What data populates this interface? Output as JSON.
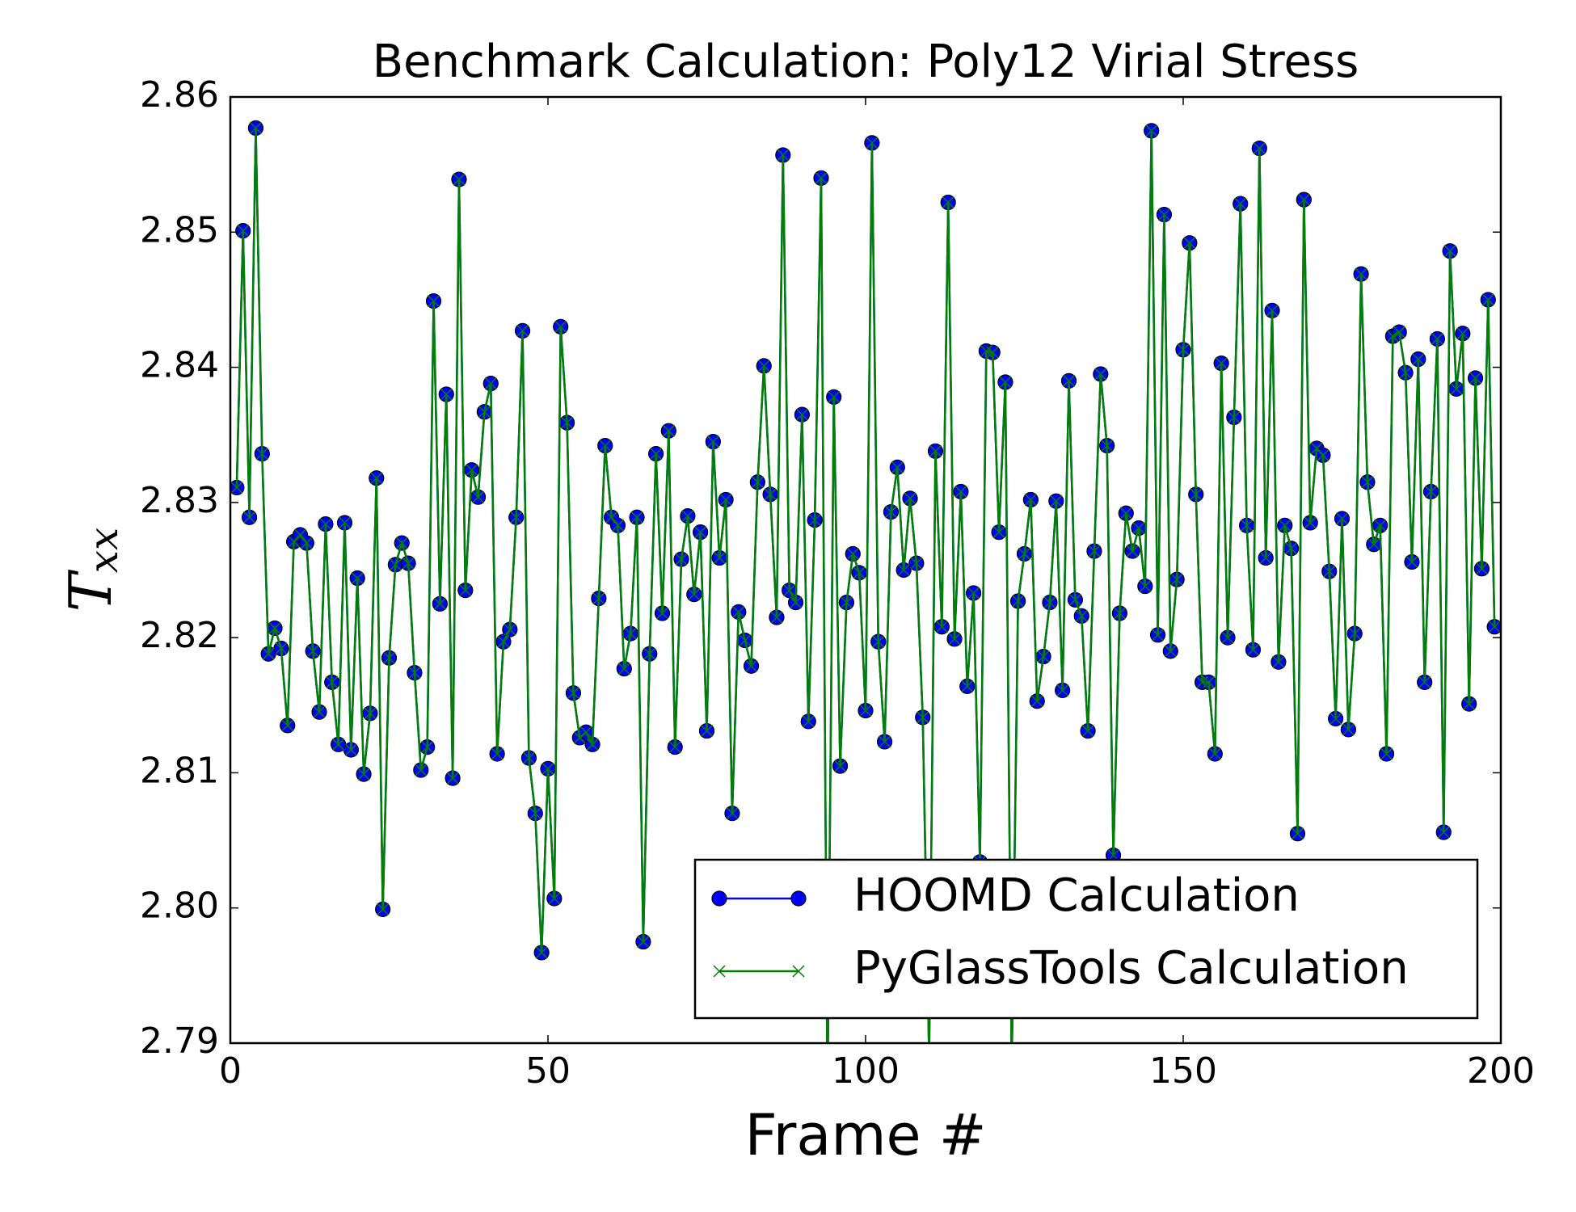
{
  "chart_data": {
    "type": "line",
    "title": "Benchmark Calculation: Poly12 Virial Stress",
    "xlabel": "Frame #",
    "ylabel": [
      "T",
      "xx"
    ],
    "xlim": [
      0,
      200
    ],
    "xticks": [
      0,
      50,
      100,
      150,
      200
    ],
    "ylim": [
      2.79,
      2.86
    ],
    "yticks": [
      2.79,
      {
        "value": 2.8,
        "label": "2.80"
      },
      2.81,
      2.82,
      2.83,
      2.84,
      2.85,
      2.86
    ],
    "legend": "lower right",
    "x": [
      1,
      2,
      3,
      4,
      5,
      6,
      7,
      8,
      9,
      10,
      11,
      12,
      13,
      14,
      15,
      16,
      17,
      18,
      19,
      20,
      21,
      22,
      23,
      24,
      25,
      26,
      27,
      28,
      29,
      30,
      31,
      32,
      33,
      34,
      35,
      36,
      37,
      38,
      39,
      40,
      41,
      42,
      43,
      44,
      45,
      46,
      47,
      48,
      49,
      50,
      51,
      52,
      53,
      54,
      55,
      56,
      57,
      58,
      59,
      60,
      61,
      62,
      63,
      64,
      65,
      66,
      67,
      68,
      69,
      70,
      71,
      72,
      73,
      74,
      75,
      76,
      77,
      78,
      79,
      80,
      81,
      82,
      83,
      84,
      85,
      86,
      87,
      88,
      89,
      90,
      91,
      92,
      93,
      94,
      95,
      96,
      97,
      98,
      99,
      100,
      101,
      102,
      103,
      104,
      105,
      106,
      107,
      108,
      109,
      110,
      111,
      112,
      113,
      114,
      115,
      116,
      117,
      118,
      119,
      120,
      121,
      122,
      123,
      124,
      125,
      126,
      127,
      128,
      129,
      130,
      131,
      132,
      133,
      134,
      135,
      136,
      137,
      138,
      139,
      140,
      141,
      142,
      143,
      144,
      145,
      146,
      147,
      148,
      149,
      150,
      151,
      152,
      153,
      154,
      155,
      156,
      157,
      158,
      159,
      160,
      161,
      162,
      163,
      164,
      165,
      166,
      167,
      168,
      169,
      170,
      171,
      172,
      173,
      174,
      175,
      176,
      177,
      178,
      179,
      180,
      181,
      182,
      183,
      184,
      185,
      186,
      187,
      188,
      189,
      190,
      191,
      192,
      193,
      194,
      195,
      196,
      197,
      198,
      199
    ],
    "series": [
      {
        "name": "HOOMD Calculation",
        "color": "#0000ff",
        "marker": "o",
        "values": [
          2.8311,
          2.8501,
          2.8289,
          2.8577,
          2.8336,
          2.8188,
          2.8207,
          2.8192,
          2.8135,
          2.8271,
          2.8276,
          2.827,
          2.819,
          2.8145,
          2.8284,
          2.8167,
          2.8121,
          2.8285,
          2.8117,
          2.8244,
          2.8099,
          2.8144,
          2.8318,
          2.7999,
          2.8185,
          2.8254,
          2.827,
          2.8255,
          2.8174,
          2.8102,
          2.8119,
          2.8449,
          2.8225,
          2.838,
          2.8096,
          2.8539,
          2.8235,
          2.8324,
          2.8304,
          2.8367,
          2.8388,
          2.8114,
          2.8197,
          2.8206,
          2.8289,
          2.8427,
          2.8111,
          2.807,
          2.7967,
          2.8103,
          2.8007,
          2.843,
          2.8359,
          2.8159,
          2.8126,
          2.813,
          2.8121,
          2.8229,
          2.8342,
          2.8289,
          2.8283,
          2.8177,
          2.8203,
          2.8289,
          2.7975,
          2.8188,
          2.8336,
          2.8218,
          2.8353,
          2.8119,
          2.8258,
          2.829,
          2.8232,
          2.8278,
          2.8131,
          2.8345,
          2.8259,
          2.8302,
          2.807,
          2.8219,
          2.8198,
          2.8179,
          2.8315,
          2.8401,
          2.8306,
          2.8215,
          2.8557,
          2.8235,
          2.8226,
          2.8365,
          2.8138,
          2.8287,
          2.854,
          2.786,
          2.8378,
          2.8105,
          2.8226,
          2.8262,
          2.8248,
          2.8146,
          2.8566,
          2.8197,
          2.8123,
          2.8293,
          2.8326,
          2.825,
          2.8303,
          2.8255,
          2.8141,
          2.789,
          2.8338,
          2.8208,
          2.8522,
          2.8199,
          2.8308,
          2.8164,
          2.8233,
          2.8034,
          2.8412,
          2.8411,
          2.8278,
          2.8389,
          2.788,
          2.8227,
          2.8262,
          2.8302,
          2.8153,
          2.8186,
          2.8226,
          2.8301,
          2.8161,
          2.839,
          2.8228,
          2.8216,
          2.8131,
          2.8264,
          2.8395,
          2.8342,
          2.8039,
          2.8218,
          2.8292,
          2.8264,
          2.8281,
          2.8238,
          2.8575,
          2.8202,
          2.8513,
          2.819,
          2.8243,
          2.8413,
          2.8492,
          2.8306,
          2.8167,
          2.8167,
          2.8114,
          2.8403,
          2.82,
          2.8363,
          2.8521,
          2.8283,
          2.8191,
          2.8562,
          2.8259,
          2.8442,
          2.8182,
          2.8283,
          2.8266,
          2.8055,
          2.8524,
          2.8285,
          2.834,
          2.8335,
          2.8249,
          2.814,
          2.8288,
          2.8132,
          2.8203,
          2.8469,
          2.8315,
          2.8269,
          2.8283,
          2.8114,
          2.8423,
          2.8426,
          2.8396,
          2.8256,
          2.8406,
          2.8167,
          2.8308,
          2.8421,
          2.8056,
          2.8486,
          2.8384,
          2.8425,
          2.8151,
          2.8392,
          2.8251,
          2.845,
          2.8208
        ]
      },
      {
        "name": "PyGlassTools Calculation",
        "color": "#008000",
        "marker": "x",
        "values": [
          2.8311,
          2.8501,
          2.8289,
          2.8577,
          2.8336,
          2.8188,
          2.8207,
          2.8192,
          2.8135,
          2.8271,
          2.8276,
          2.827,
          2.819,
          2.8145,
          2.8284,
          2.8167,
          2.8121,
          2.8285,
          2.8117,
          2.8244,
          2.8099,
          2.8144,
          2.8318,
          2.7999,
          2.8185,
          2.8254,
          2.827,
          2.8255,
          2.8174,
          2.8102,
          2.8119,
          2.8449,
          2.8225,
          2.838,
          2.8096,
          2.8539,
          2.8235,
          2.8324,
          2.8304,
          2.8367,
          2.8388,
          2.8114,
          2.8197,
          2.8206,
          2.8289,
          2.8427,
          2.8111,
          2.807,
          2.7967,
          2.8103,
          2.8007,
          2.843,
          2.8359,
          2.8159,
          2.8126,
          2.813,
          2.8121,
          2.8229,
          2.8342,
          2.8289,
          2.8283,
          2.8177,
          2.8203,
          2.8289,
          2.7975,
          2.8188,
          2.8336,
          2.8218,
          2.8353,
          2.8119,
          2.8258,
          2.829,
          2.8232,
          2.8278,
          2.8131,
          2.8345,
          2.8259,
          2.8302,
          2.807,
          2.8219,
          2.8198,
          2.8179,
          2.8315,
          2.8401,
          2.8306,
          2.8215,
          2.8557,
          2.8235,
          2.8226,
          2.8365,
          2.8138,
          2.8287,
          2.854,
          2.786,
          2.8378,
          2.8105,
          2.8226,
          2.8262,
          2.8248,
          2.8146,
          2.8566,
          2.8197,
          2.8123,
          2.8293,
          2.8326,
          2.825,
          2.8303,
          2.8255,
          2.8141,
          2.789,
          2.8338,
          2.8208,
          2.8522,
          2.8199,
          2.8308,
          2.8164,
          2.8233,
          2.8034,
          2.8412,
          2.8411,
          2.8278,
          2.8389,
          2.788,
          2.8227,
          2.8262,
          2.8302,
          2.8153,
          2.8186,
          2.8226,
          2.8301,
          2.8161,
          2.839,
          2.8228,
          2.8216,
          2.8131,
          2.8264,
          2.8395,
          2.8342,
          2.8039,
          2.8218,
          2.8292,
          2.8264,
          2.8281,
          2.8238,
          2.8575,
          2.8202,
          2.8513,
          2.819,
          2.8243,
          2.8413,
          2.8492,
          2.8306,
          2.8167,
          2.8167,
          2.8114,
          2.8403,
          2.82,
          2.8363,
          2.8521,
          2.8283,
          2.8191,
          2.8562,
          2.8259,
          2.8442,
          2.8182,
          2.8283,
          2.8266,
          2.8055,
          2.8524,
          2.8285,
          2.834,
          2.8335,
          2.8249,
          2.814,
          2.8288,
          2.8132,
          2.8203,
          2.8469,
          2.8315,
          2.8269,
          2.8283,
          2.8114,
          2.8423,
          2.8426,
          2.8396,
          2.8256,
          2.8406,
          2.8167,
          2.8308,
          2.8421,
          2.8056,
          2.8486,
          2.8384,
          2.8425,
          2.8151,
          2.8392,
          2.8251,
          2.845,
          2.8208
        ]
      }
    ]
  }
}
